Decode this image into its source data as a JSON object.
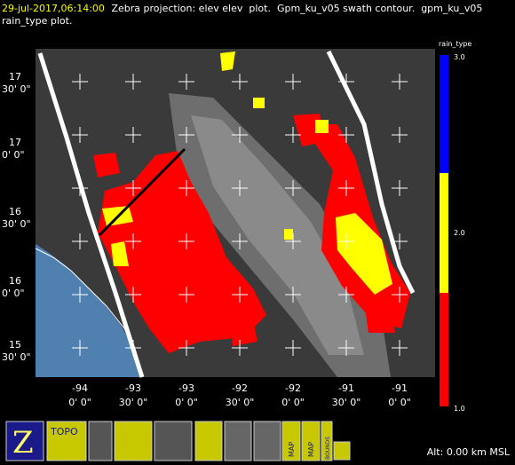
{
  "header": {
    "timestamp": "29-jul-2017,06:14:00",
    "description": " Zebra projection: elev elev  plot.  Gpm_ku_v05 swath contour.  gpm_ku_v05",
    "description_line2": "rain_type  plot."
  },
  "map": {
    "lat_labels": [
      {
        "deg": "17",
        "min": "30' 0\""
      },
      {
        "deg": "17",
        "min": "0' 0\""
      },
      {
        "deg": "16",
        "min": "30' 0\""
      },
      {
        "deg": "16",
        "min": "0' 0\""
      },
      {
        "deg": "15",
        "min": "30' 0\""
      }
    ],
    "lon_labels": [
      {
        "deg": "-94",
        "min": "0' 0\""
      },
      {
        "deg": "-93",
        "min": "30' 0\""
      },
      {
        "deg": "-93",
        "min": "0' 0\""
      },
      {
        "deg": "-92",
        "min": "30' 0\""
      },
      {
        "deg": "-92",
        "min": "0' 0\""
      },
      {
        "deg": "-91",
        "min": "30' 0\""
      },
      {
        "deg": "-91",
        "min": "0' 0\""
      }
    ]
  },
  "colorbar": {
    "title": "rain_type",
    "labels": [
      "3.0",
      "2.0",
      "1.0"
    ]
  },
  "toolbar": {
    "topo": "TOPO",
    "map1": "MAP",
    "map2": "MAP",
    "bounds": "BOUNDS"
  },
  "status": "Alt: 0.00 km MSL"
}
